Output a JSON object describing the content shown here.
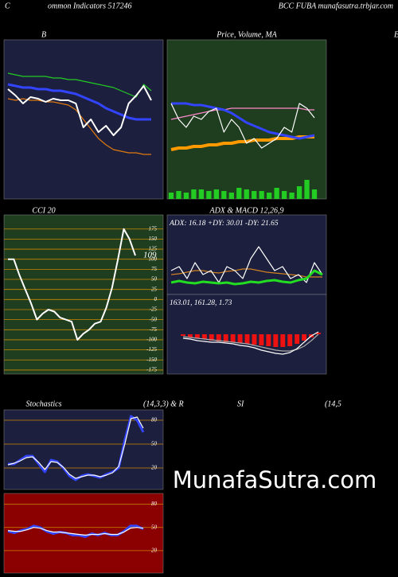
{
  "header": {
    "left": "C",
    "middle": "ommon  Indicators 517246",
    "right": "BCC FUBA munafasutra.trbjar.com",
    "edge": "E"
  },
  "stoch_titles": [
    "Stochastics",
    "(14,3,3) & R",
    "SI",
    "(14,5"
  ],
  "watermark": "MunafaSutra.com",
  "chart_data": [
    {
      "type": "line",
      "title": "B",
      "ylim": [
        0,
        100
      ],
      "series": [
        {
          "color": "#22cc22",
          "values": [
            79,
            78,
            77,
            77,
            77,
            77,
            76,
            76,
            75,
            75,
            74,
            73,
            72,
            71,
            70,
            68,
            66,
            64,
            72,
            68
          ]
        },
        {
          "color": "#3344ff",
          "width": 3,
          "values": [
            72,
            71,
            70,
            70,
            69,
            69,
            68,
            68,
            67,
            66,
            64,
            62,
            60,
            57,
            55,
            53,
            51,
            50,
            50,
            50
          ]
        },
        {
          "color": "#e07a10",
          "values": [
            63,
            62,
            63,
            62,
            62,
            61,
            61,
            60,
            59,
            56,
            50,
            44,
            38,
            34,
            31,
            30,
            29,
            29,
            28,
            28
          ]
        },
        {
          "color": "#ffffff",
          "width": 2,
          "values": [
            69,
            65,
            60,
            64,
            63,
            61,
            63,
            62,
            62,
            60,
            45,
            50,
            42,
            46,
            40,
            45,
            60,
            65,
            71,
            62
          ]
        }
      ]
    },
    {
      "type": "line",
      "title": "Price, Volume, MA",
      "ylim": [
        0,
        100
      ],
      "y2lim": [
        0,
        100
      ],
      "series": [
        {
          "color": "#22cc22",
          "style": "bar",
          "axis": "y2",
          "values": [
            4,
            5,
            4,
            6,
            6,
            5,
            6,
            5,
            4,
            7,
            6,
            5,
            5,
            4,
            7,
            5,
            4,
            8,
            12,
            6
          ]
        },
        {
          "color": "#ff9900",
          "width": 4,
          "values": [
            31,
            32,
            32,
            33,
            33,
            34,
            34,
            35,
            35,
            36,
            36,
            37,
            37,
            37,
            38,
            38,
            38,
            39,
            39,
            39
          ]
        },
        {
          "color": "#ff88cc",
          "values": [
            50,
            51,
            52,
            53,
            54,
            55,
            56,
            56,
            57,
            57,
            57,
            57,
            57,
            57,
            57,
            57,
            57,
            57,
            56,
            56
          ]
        },
        {
          "color": "#3344ff",
          "width": 3,
          "values": [
            60,
            60,
            60,
            59,
            59,
            58,
            57,
            56,
            54,
            51,
            48,
            46,
            44,
            42,
            41,
            40,
            39,
            38,
            39,
            40
          ]
        },
        {
          "color": "#ffffff",
          "values": [
            60,
            50,
            45,
            52,
            50,
            55,
            57,
            42,
            50,
            45,
            35,
            38,
            32,
            35,
            38,
            45,
            42,
            60,
            57,
            51
          ]
        }
      ]
    },
    {
      "type": "line",
      "title": "CCI 20",
      "ylim": [
        -185,
        210
      ],
      "yticks": [
        175,
        150,
        125,
        100,
        75,
        50,
        25,
        0,
        -25,
        -50,
        -75,
        -100,
        -125,
        -150,
        -175
      ],
      "grid": true,
      "grid_color": "#cc8800",
      "label_last": true,
      "series": [
        {
          "color": "#ffffff",
          "width": 2,
          "values": [
            100,
            100,
            60,
            25,
            -10,
            -50,
            -35,
            -25,
            -30,
            -45,
            -50,
            -55,
            -100,
            -85,
            -75,
            -60,
            -55,
            -20,
            30,
            100,
            175,
            150,
            109
          ]
        }
      ]
    },
    {
      "type": "line",
      "title": "ADX  & MACD 12,26,9",
      "annotation": "ADX: 16.18  +DY: 30.01 -DY: 21.65",
      "ylim": [
        0,
        100
      ],
      "series": [
        {
          "color": "#d08020",
          "values": [
            25,
            26,
            28,
            30,
            30,
            28,
            27,
            29,
            30,
            32,
            32,
            30,
            28,
            27,
            26,
            25,
            24,
            22,
            22,
            22
          ]
        },
        {
          "color": "#ffffff",
          "values": [
            30,
            35,
            20,
            40,
            25,
            30,
            15,
            35,
            30,
            20,
            45,
            60,
            45,
            30,
            35,
            20,
            25,
            15,
            40,
            25
          ]
        },
        {
          "color": "#22dd22",
          "width": 3,
          "values": [
            15,
            17,
            15,
            14,
            16,
            15,
            14,
            15,
            13,
            14,
            16,
            15,
            17,
            18,
            16,
            15,
            18,
            20,
            30,
            25
          ]
        }
      ]
    },
    {
      "type": "line",
      "annotation": "163.01,  161.28,  1.73",
      "ylim": [
        -50,
        50
      ],
      "series": [
        {
          "color": "#ee1111",
          "style": "bar",
          "values": [
            -2,
            -4,
            -5,
            -6,
            -8,
            -9,
            -10,
            -10,
            -11,
            -12,
            -13,
            -14,
            -15,
            -16,
            -16,
            -15,
            -12,
            -8,
            -4,
            2
          ]
        },
        {
          "color": "#aaaaaa",
          "values": [
            -3,
            -4,
            -5,
            -6,
            -7,
            -8,
            -9,
            -10,
            -11,
            -12,
            -14,
            -16,
            -18,
            -20,
            -21,
            -21,
            -19,
            -15,
            -8,
            0
          ]
        },
        {
          "color": "#ffffff",
          "values": [
            -5,
            -6,
            -8,
            -9,
            -10,
            -10,
            -11,
            -12,
            -14,
            -15,
            -17,
            -20,
            -22,
            -24,
            -25,
            -23,
            -18,
            -10,
            -2,
            3
          ]
        }
      ]
    },
    {
      "type": "line",
      "ylim": [
        -7,
        93
      ],
      "yticks": [
        80,
        50,
        20
      ],
      "grid": true,
      "grid_color": "#cc8800",
      "series": [
        {
          "color": "#3344ff",
          "width": 3,
          "values": [
            25,
            25,
            30,
            35,
            35,
            25,
            15,
            30,
            28,
            20,
            10,
            5,
            10,
            12,
            10,
            8,
            12,
            15,
            20,
            55,
            85,
            80,
            65
          ]
        },
        {
          "color": "#ffffff",
          "values": [
            24,
            26,
            29,
            33,
            34,
            27,
            18,
            28,
            27,
            21,
            12,
            7,
            9,
            11,
            11,
            9,
            11,
            14,
            22,
            50,
            82,
            84,
            70
          ]
        }
      ]
    },
    {
      "type": "line",
      "ylim": [
        -9,
        94
      ],
      "yticks": [
        80,
        50,
        20
      ],
      "grid": true,
      "grid_color": "#cc8800",
      "series": [
        {
          "color": "#3344ff",
          "width": 3,
          "values": [
            45,
            43,
            46,
            48,
            52,
            50,
            45,
            42,
            44,
            43,
            40,
            40,
            38,
            42,
            40,
            43,
            40,
            40,
            45,
            52,
            52,
            48
          ]
        },
        {
          "color": "#ffffff",
          "values": [
            46,
            45,
            45,
            47,
            50,
            49,
            46,
            44,
            44,
            43,
            42,
            41,
            40,
            41,
            41,
            42,
            41,
            41,
            44,
            49,
            50,
            49
          ]
        }
      ]
    }
  ]
}
